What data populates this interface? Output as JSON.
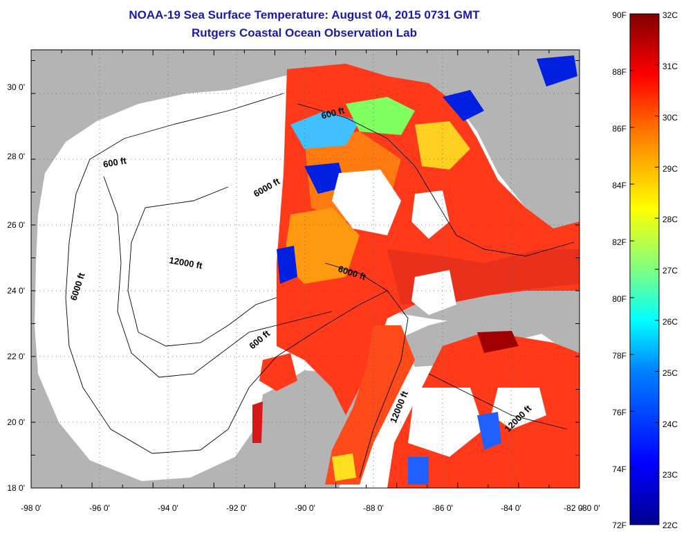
{
  "header": {
    "title": "NOAA-19 Sea Surface Temperature:  August 04, 2015 0731 GMT",
    "subtitle": "Rutgers Coastal Ocean Observation Lab"
  },
  "map": {
    "x_ticks": [
      "-98 0'",
      "-96 0'",
      "-94 0'",
      "-92 0'",
      "-90 0'",
      "-88 0'",
      "-86 0'",
      "-84 0'",
      "-82 0'",
      "-80 0'"
    ],
    "y_ticks": [
      "30 0'",
      "28 0'",
      "26 0'",
      "24 0'",
      "22 0'",
      "20 0'",
      "18 0'"
    ],
    "contour_labels": [
      "600 ft",
      "600 ft",
      "600 ft",
      "6000 ft",
      "6000 ft",
      "6000 ft",
      "12000 ft",
      "12000 ft",
      "12000 ft"
    ],
    "colors": {
      "land": "#b4b4b4",
      "cloud": "#ffffff",
      "frame": "#000000"
    }
  },
  "colorbar": {
    "fahrenheit": [
      "90F",
      "88F",
      "86F",
      "84F",
      "82F",
      "80F",
      "78F",
      "76F",
      "74F",
      "72F"
    ],
    "celsius": [
      "32C",
      "31C",
      "30C",
      "29C",
      "28C",
      "27C",
      "26C",
      "25C",
      "24C",
      "23C",
      "22C"
    ],
    "range_f": [
      72,
      90
    ],
    "range_c": [
      22,
      32
    ],
    "colormap": [
      "#00008f",
      "#0000ff",
      "#0080ff",
      "#00ffff",
      "#80ff80",
      "#ffff00",
      "#ff8000",
      "#ff0000",
      "#800000"
    ]
  }
}
